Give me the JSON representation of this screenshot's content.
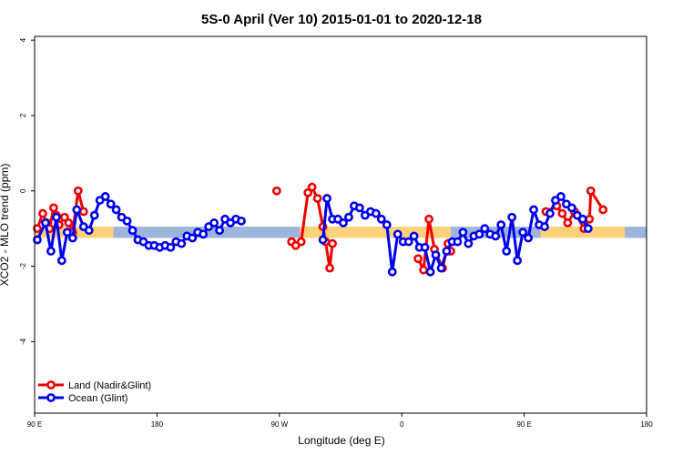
{
  "chart_data": {
    "type": "line",
    "title": "5S-0 April (Ver 10)   2015-01-01 to 2020-12-18",
    "xlabel": "Longitude (deg E)",
    "ylabel": "XCO2 - MLO trend (ppm)",
    "xlim": [
      90,
      540
    ],
    "ylim": [
      -5.9,
      4.1
    ],
    "x_ticks": [
      {
        "value": 90,
        "label": "90 E"
      },
      {
        "value": 180,
        "label": "180"
      },
      {
        "value": 270,
        "label": "90 W"
      },
      {
        "value": 360,
        "label": "0"
      },
      {
        "value": 450,
        "label": "90 E"
      },
      {
        "value": 540,
        "label": "180"
      }
    ],
    "y_ticks": [
      {
        "value": 4,
        "label": "4"
      },
      {
        "value": 2,
        "label": "2"
      },
      {
        "value": 0,
        "label": "0"
      },
      {
        "value": -2,
        "label": "-2"
      },
      {
        "value": -4,
        "label": "-4"
      }
    ],
    "bands": [
      {
        "name": "land-band",
        "color": "#ffd27a",
        "ymin": -1.25,
        "ymax": -0.95,
        "ranges": [
          [
            90,
            148
          ],
          [
            285,
            396
          ],
          [
            462,
            524
          ]
        ]
      },
      {
        "name": "ocean-band",
        "color": "#9db5dc",
        "ymin": -1.25,
        "ymax": -0.95,
        "ranges": [
          [
            90,
            540
          ]
        ]
      }
    ],
    "legend": {
      "position": "bottom-left"
    },
    "series": [
      {
        "name": "Land (Nadir&Glint)",
        "color": "#ee0000",
        "segments": [
          [
            [
              92,
              -1.0
            ],
            [
              96,
              -0.6
            ],
            [
              99,
              -0.85
            ],
            [
              101,
              -1.0
            ],
            [
              104,
              -0.45
            ],
            [
              106,
              -0.65
            ],
            [
              108,
              -0.9
            ],
            [
              112,
              -0.7
            ],
            [
              115,
              -0.85
            ],
            [
              118,
              -1.1
            ],
            [
              122,
              0.0
            ],
            [
              126,
              -0.55
            ]
          ],
          [
            [
              268,
              0.0
            ]
          ],
          [
            [
              279,
              -1.35
            ],
            [
              282,
              -1.45
            ],
            [
              286,
              -1.35
            ],
            [
              291,
              -0.05
            ],
            [
              294,
              0.1
            ],
            [
              298,
              -0.2
            ],
            [
              302,
              -0.95
            ],
            [
              304,
              -1.35
            ],
            [
              307,
              -2.05
            ],
            [
              309,
              -1.4
            ]
          ],
          [
            [
              372,
              -1.8
            ],
            [
              376,
              -2.1
            ],
            [
              380,
              -0.75
            ],
            [
              384,
              -1.55
            ],
            [
              390,
              -2.05
            ],
            [
              394,
              -1.4
            ],
            [
              396,
              -1.6
            ]
          ],
          [
            [
              466,
              -0.55
            ],
            [
              474,
              -0.4
            ],
            [
              478,
              -0.6
            ],
            [
              482,
              -0.85
            ],
            [
              487,
              -0.55
            ],
            [
              494,
              -1.0
            ],
            [
              498,
              -0.75
            ],
            [
              499,
              0.0
            ],
            [
              508,
              -0.5
            ]
          ]
        ]
      },
      {
        "name": "Ocean (Glint)",
        "color": "#0000ee",
        "segments": [
          [
            [
              92,
              -1.3
            ],
            [
              98,
              -0.85
            ],
            [
              102,
              -1.6
            ],
            [
              106,
              -0.7
            ],
            [
              110,
              -1.85
            ],
            [
              114,
              -1.1
            ],
            [
              118,
              -1.25
            ],
            [
              121,
              -0.5
            ],
            [
              126,
              -0.95
            ],
            [
              130,
              -1.05
            ],
            [
              134,
              -0.65
            ],
            [
              138,
              -0.25
            ],
            [
              142,
              -0.15
            ],
            [
              146,
              -0.35
            ],
            [
              150,
              -0.5
            ],
            [
              154,
              -0.7
            ],
            [
              158,
              -0.8
            ],
            [
              162,
              -1.05
            ],
            [
              166,
              -1.3
            ],
            [
              170,
              -1.35
            ],
            [
              174,
              -1.45
            ],
            [
              178,
              -1.45
            ],
            [
              182,
              -1.5
            ],
            [
              186,
              -1.45
            ],
            [
              190,
              -1.5
            ],
            [
              194,
              -1.35
            ],
            [
              198,
              -1.4
            ],
            [
              202,
              -1.2
            ],
            [
              206,
              -1.25
            ],
            [
              210,
              -1.1
            ],
            [
              214,
              -1.15
            ],
            [
              218,
              -0.95
            ],
            [
              222,
              -0.85
            ],
            [
              226,
              -1.05
            ],
            [
              230,
              -0.75
            ],
            [
              234,
              -0.85
            ],
            [
              238,
              -0.75
            ],
            [
              242,
              -0.8
            ]
          ],
          [
            [
              302,
              -1.3
            ],
            [
              305,
              -0.2
            ],
            [
              309,
              -0.75
            ],
            [
              313,
              -0.75
            ],
            [
              317,
              -0.85
            ],
            [
              321,
              -0.7
            ],
            [
              325,
              -0.4
            ],
            [
              329,
              -0.45
            ],
            [
              333,
              -0.65
            ],
            [
              337,
              -0.55
            ],
            [
              341,
              -0.6
            ],
            [
              345,
              -0.75
            ],
            [
              349,
              -0.9
            ],
            [
              353,
              -2.15
            ],
            [
              357,
              -1.15
            ],
            [
              361,
              -1.35
            ],
            [
              365,
              -1.35
            ],
            [
              369,
              -1.2
            ],
            [
              373,
              -1.5
            ],
            [
              377,
              -1.5
            ],
            [
              381,
              -2.15
            ],
            [
              385,
              -1.7
            ],
            [
              389,
              -2.05
            ],
            [
              393,
              -1.6
            ],
            [
              397,
              -1.35
            ],
            [
              401,
              -1.35
            ],
            [
              405,
              -1.1
            ],
            [
              409,
              -1.4
            ],
            [
              413,
              -1.2
            ],
            [
              417,
              -1.15
            ],
            [
              421,
              -1.0
            ],
            [
              425,
              -1.15
            ],
            [
              429,
              -1.2
            ],
            [
              433,
              -0.9
            ],
            [
              437,
              -1.6
            ],
            [
              441,
              -0.7
            ],
            [
              445,
              -1.85
            ],
            [
              449,
              -1.1
            ],
            [
              453,
              -1.25
            ],
            [
              457,
              -0.5
            ],
            [
              461,
              -0.9
            ],
            [
              465,
              -0.95
            ],
            [
              469,
              -0.6
            ],
            [
              473,
              -0.25
            ],
            [
              477,
              -0.15
            ],
            [
              481,
              -0.35
            ],
            [
              485,
              -0.45
            ],
            [
              489,
              -0.65
            ],
            [
              493,
              -0.75
            ],
            [
              497,
              -1.0
            ]
          ]
        ]
      }
    ]
  }
}
